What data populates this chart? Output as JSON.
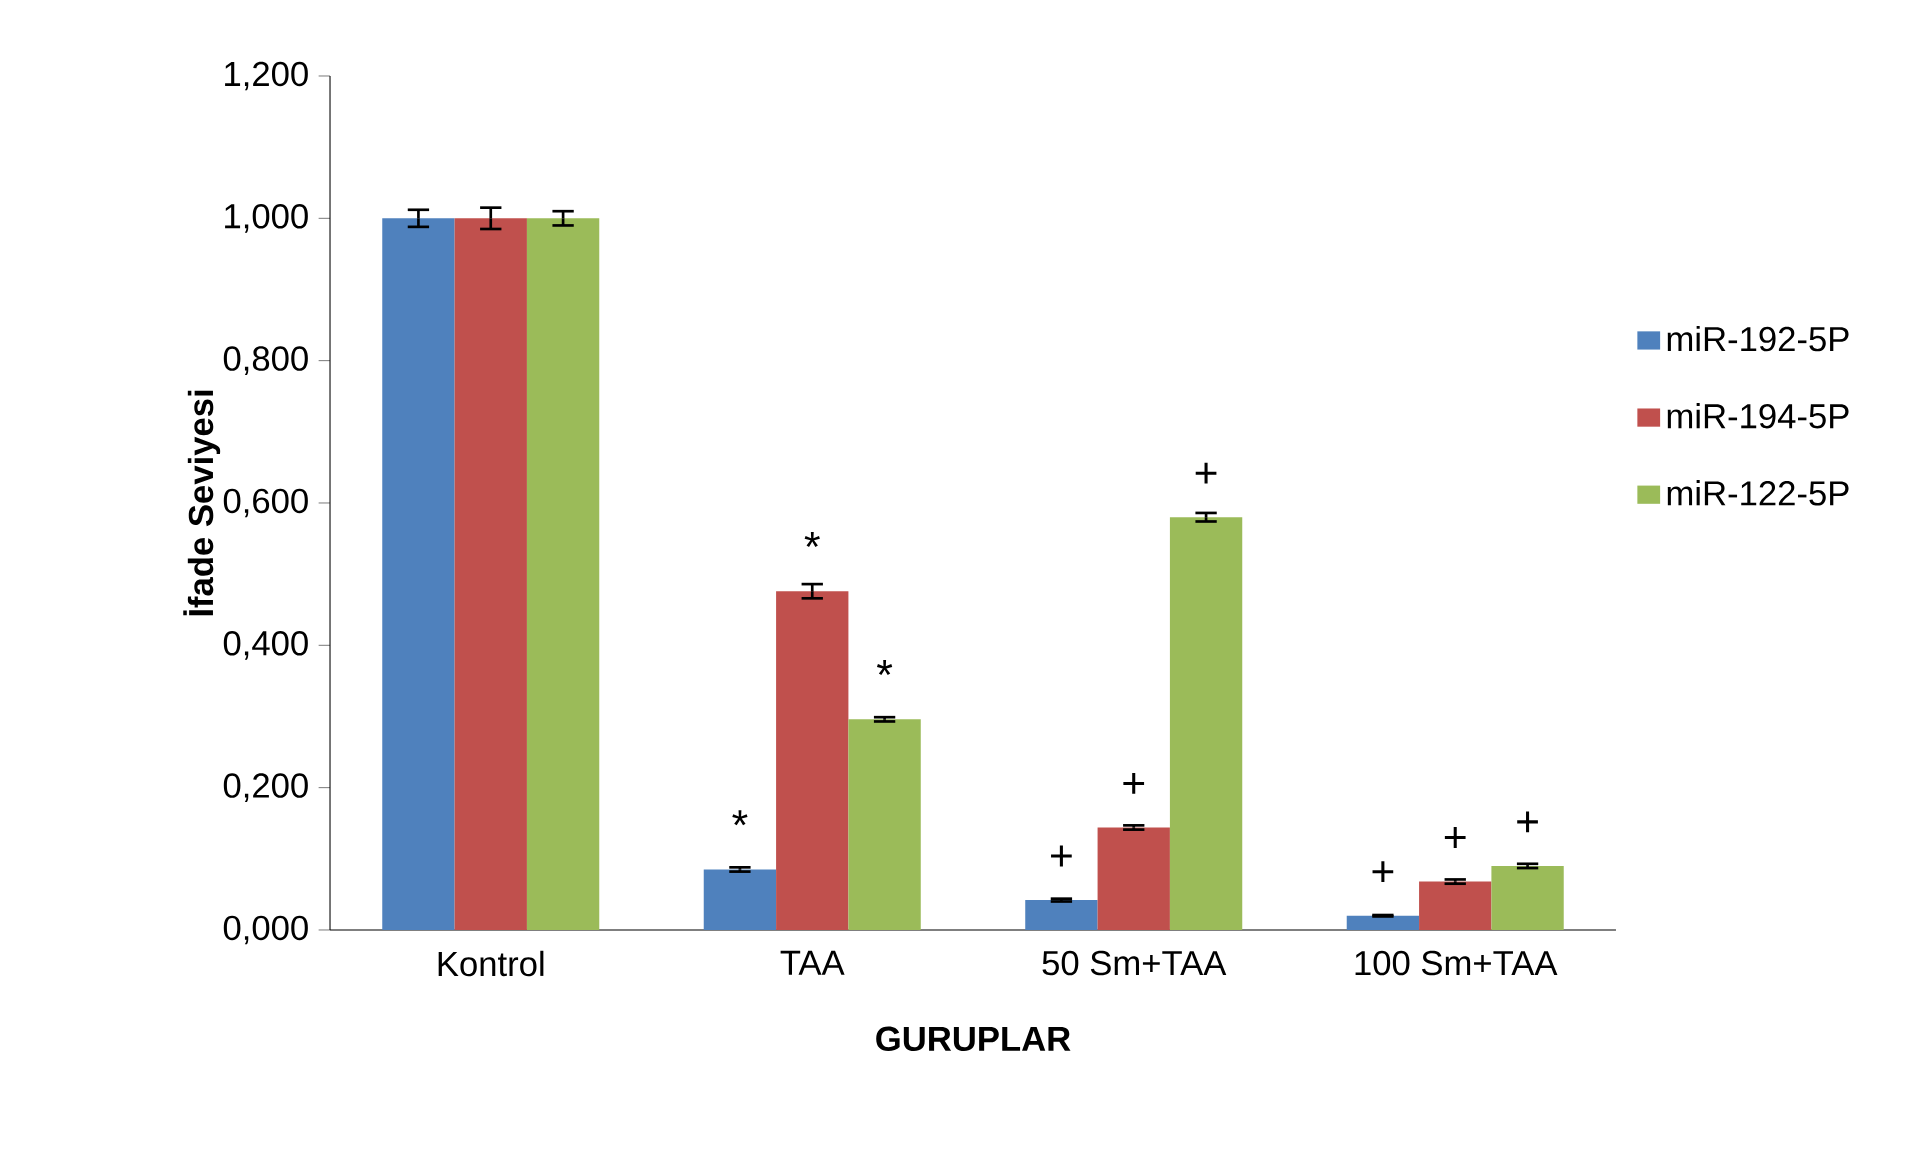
{
  "chart_data": {
    "type": "bar",
    "xlabel": "GURUPLAR",
    "ylabel": "İfade Seviyesi",
    "categories": [
      "Kontrol",
      "TAA",
      "50 Sm+TAA",
      "100 Sm+TAA"
    ],
    "series": [
      {
        "name": "miR-192-5P",
        "color": "#4f81bd",
        "values": [
          1.0,
          0.085,
          0.042,
          0.02
        ],
        "errors": [
          0.012,
          0.003,
          0.002,
          0.001
        ]
      },
      {
        "name": "miR-194-5P",
        "color": "#c0504d",
        "values": [
          1.0,
          0.476,
          0.144,
          0.068
        ],
        "errors": [
          0.015,
          0.01,
          0.003,
          0.003
        ]
      },
      {
        "name": "miR-122-5P",
        "color": "#9bbb59",
        "values": [
          1.0,
          0.296,
          0.58,
          0.09
        ],
        "errors": [
          0.01,
          0.003,
          0.006,
          0.003
        ]
      }
    ],
    "ylim": [
      0,
      1.2
    ],
    "yticks": [
      {
        "value": 0,
        "label": "0,000"
      },
      {
        "value": 0.2,
        "label": "0,200"
      },
      {
        "value": 0.4,
        "label": "0,400"
      },
      {
        "value": 0.6,
        "label": "0,600"
      },
      {
        "value": 0.8,
        "label": "0,800"
      },
      {
        "value": 1.0,
        "label": "1,000"
      },
      {
        "value": 1.2,
        "label": "1,200"
      }
    ],
    "grid": false,
    "legend": "right",
    "annotations": [
      "*",
      "*",
      "*",
      "+",
      "+",
      "+",
      "+",
      "+",
      "+"
    ]
  }
}
